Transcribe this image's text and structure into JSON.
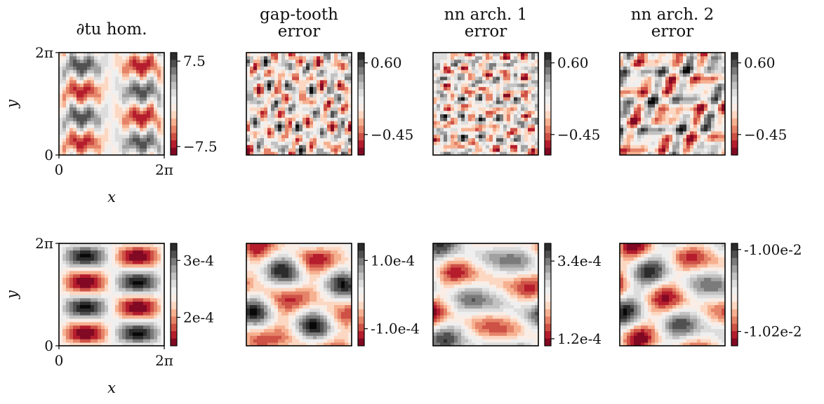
{
  "figure": {
    "rows": 2,
    "cols": 4
  },
  "chart_data": [
    {
      "type": "heatmap",
      "panel": "row1-col1",
      "title": [
        "∂tu hom."
      ],
      "xlabel": "x",
      "ylabel": "y",
      "xticks": [
        "0",
        "2π"
      ],
      "yticks": [
        "0",
        "2π"
      ],
      "colorbar": {
        "ticks": [
          "7.5",
          "−7.5"
        ],
        "range": [
          -9,
          9
        ],
        "tick_values": [
          7.5,
          -7.5
        ]
      },
      "field": "row1_hom"
    },
    {
      "type": "heatmap",
      "panel": "row1-col2",
      "title": [
        "gap-tooth",
        "error"
      ],
      "colorbar": {
        "ticks": [
          "0.60",
          "−0.45"
        ],
        "range": [
          -0.75,
          0.75
        ],
        "tick_values": [
          0.6,
          -0.45
        ]
      },
      "field": "row1_err_a"
    },
    {
      "type": "heatmap",
      "panel": "row1-col3",
      "title": [
        "nn arch. 1",
        "error"
      ],
      "colorbar": {
        "ticks": [
          "0.60",
          "−0.45"
        ],
        "range": [
          -0.75,
          0.75
        ],
        "tick_values": [
          0.6,
          -0.45
        ]
      },
      "field": "row1_err_b"
    },
    {
      "type": "heatmap",
      "panel": "row1-col4",
      "title": [
        "nn arch. 2",
        "error"
      ],
      "colorbar": {
        "ticks": [
          "0.60",
          "−0.45"
        ],
        "range": [
          -0.75,
          0.75
        ],
        "tick_values": [
          0.6,
          -0.45
        ]
      },
      "field": "row1_err_c"
    },
    {
      "type": "heatmap",
      "panel": "row2-col1",
      "title": [],
      "xlabel": "x",
      "ylabel": "y",
      "xticks": [
        "0",
        "2π"
      ],
      "yticks": [
        "0",
        "2π"
      ],
      "colorbar": {
        "ticks": [
          "3e-4",
          "2e-4"
        ],
        "range": [
          0.00015,
          0.00033
        ],
        "tick_values": [
          0.0003,
          0.0002
        ]
      },
      "field": "row2_hom"
    },
    {
      "type": "heatmap",
      "panel": "row2-col2",
      "title": [],
      "colorbar": {
        "ticks": [
          "1.0e-4",
          "-1.0e-4"
        ],
        "range": [
          -0.00015,
          0.00015
        ],
        "tick_values": [
          0.0001,
          -0.0001
        ]
      },
      "field": "row2_err_a"
    },
    {
      "type": "heatmap",
      "panel": "row2-col3",
      "title": [],
      "colorbar": {
        "ticks": [
          "3.4e-4",
          "1.2e-4"
        ],
        "range": [
          0.0001,
          0.00039
        ],
        "tick_values": [
          0.00034,
          0.00012
        ]
      },
      "field": "row2_err_b"
    },
    {
      "type": "heatmap",
      "panel": "row2-col4",
      "title": [],
      "colorbar": {
        "ticks": [
          "-1.00e-2",
          "-1.02e-2"
        ],
        "range": [
          -0.010235,
          -0.009985
        ],
        "tick_values": [
          -0.01,
          -0.0102
        ]
      },
      "field": "row2_err_c"
    }
  ],
  "colors": {
    "colormap": [
      "#67001f",
      "#b2182b",
      "#d6604d",
      "#f4a582",
      "#fddbc7",
      "#f7f7f7",
      "#e0e0e0",
      "#bababa",
      "#878787",
      "#4d4d4d",
      "#1a1a1a"
    ]
  }
}
